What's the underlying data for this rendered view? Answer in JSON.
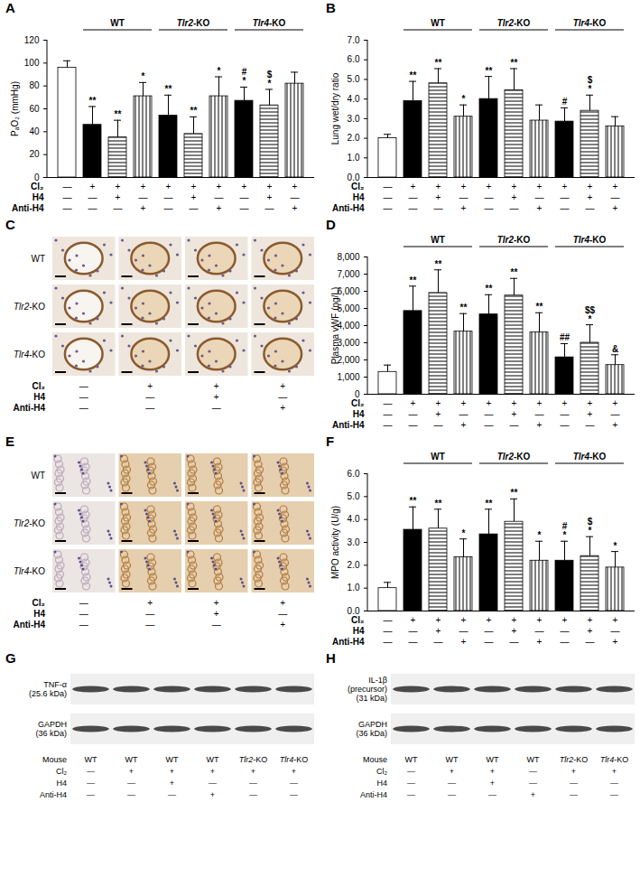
{
  "chart_data": [
    {
      "type": "bar",
      "title": "A",
      "ylabel": "PₐO₂ (mmHg)",
      "categories": [
        null,
        null,
        null,
        null,
        null,
        null,
        null,
        null,
        null,
        null
      ],
      "values": [
        96,
        46,
        35,
        71,
        54,
        38,
        71,
        67,
        63,
        82
      ],
      "errors": [
        6,
        16,
        15,
        12,
        18,
        15,
        17,
        12,
        14,
        10
      ],
      "ylim": [
        0,
        120
      ],
      "yticks": [
        0,
        20,
        40,
        60,
        80,
        100,
        120
      ],
      "tick_labels": "y",
      "colors": [
        "#ffffff",
        "#000000",
        "#ffffff",
        "#ffffff",
        "#000000",
        "#ffffff",
        "#ffffff",
        "#000000",
        "#ffffff",
        "#ffffff"
      ],
      "line_style": [
        "solid",
        "solid",
        "horizontal",
        "vertical",
        "solid",
        "horizontal",
        "vertical",
        "solid",
        "horizontal",
        "vertical"
      ],
      "significance": [
        [],
        [
          "**"
        ],
        [
          "**"
        ],
        [
          "*"
        ],
        [
          "**"
        ],
        [
          "**"
        ],
        [
          "*"
        ],
        [
          "#",
          "*"
        ],
        [
          "$",
          "*"
        ],
        []
      ],
      "groups": [
        {
          "label": "WT",
          "positions": [
            1,
            2,
            3
          ]
        },
        {
          "label": "Tlr2-KO",
          "positions": [
            4,
            5,
            6
          ]
        },
        {
          "label": "Tlr4-KO",
          "positions": [
            7,
            8,
            9
          ]
        }
      ],
      "conditions": [
        {
          "label": "Cl₂",
          "marks": [
            "—",
            "+",
            "+",
            "+",
            "+",
            "+",
            "+",
            "+",
            "+",
            "+"
          ]
        },
        {
          "label": "H4",
          "marks": [
            "—",
            "—",
            "+",
            "—",
            "—",
            "+",
            "—",
            "—",
            "+",
            "—"
          ]
        },
        {
          "label": "Anti-H4",
          "marks": [
            "—",
            "—",
            "—",
            "+",
            "—",
            "—",
            "+",
            "—",
            "—",
            "+"
          ]
        }
      ]
    },
    {
      "type": "bar",
      "title": "B",
      "ylabel": "Lung wet/dry ratio",
      "categories": [
        null,
        null,
        null,
        null,
        null,
        null,
        null,
        null,
        null,
        null
      ],
      "values": [
        2.0,
        3.9,
        4.8,
        3.1,
        4.0,
        4.45,
        2.9,
        2.85,
        3.4,
        2.6
      ],
      "errors": [
        0.2,
        1.0,
        0.75,
        0.6,
        1.15,
        1.1,
        0.8,
        0.7,
        0.8,
        0.5
      ],
      "ylim": [
        0,
        7
      ],
      "yticks": [
        0,
        1,
        2,
        3,
        4,
        5,
        6,
        7
      ],
      "tick_labels": "y",
      "colors": [
        "#ffffff",
        "#000000",
        "#ffffff",
        "#ffffff",
        "#000000",
        "#ffffff",
        "#ffffff",
        "#000000",
        "#ffffff",
        "#ffffff"
      ],
      "line_style": [
        "solid",
        "solid",
        "horizontal",
        "vertical",
        "solid",
        "horizontal",
        "vertical",
        "solid",
        "horizontal",
        "vertical"
      ],
      "significance": [
        [],
        [
          "**"
        ],
        [
          "**"
        ],
        [
          "*"
        ],
        [
          "**"
        ],
        [
          "**"
        ],
        [],
        [
          "#"
        ],
        [
          "$",
          "*"
        ],
        []
      ],
      "groups": [
        {
          "label": "WT",
          "positions": [
            1,
            2,
            3
          ]
        },
        {
          "label": "Tlr2-KO",
          "positions": [
            4,
            5,
            6
          ]
        },
        {
          "label": "Tlr4-KO",
          "positions": [
            7,
            8,
            9
          ]
        }
      ],
      "conditions": [
        {
          "label": "Cl₂",
          "marks": [
            "—",
            "+",
            "+",
            "+",
            "+",
            "+",
            "+",
            "+",
            "+",
            "+"
          ]
        },
        {
          "label": "H4",
          "marks": [
            "—",
            "—",
            "+",
            "—",
            "—",
            "+",
            "—",
            "—",
            "+",
            "—"
          ]
        },
        {
          "label": "Anti-H4",
          "marks": [
            "—",
            "—",
            "—",
            "+",
            "—",
            "—",
            "+",
            "—",
            "—",
            "+"
          ]
        }
      ]
    },
    {
      "type": "bar",
      "title": "D",
      "ylabel": "Plasma vWF (ng/L)",
      "categories": [
        null,
        null,
        null,
        null,
        null,
        null,
        null,
        null,
        null,
        null
      ],
      "values": [
        1300,
        4850,
        5900,
        3650,
        4650,
        5750,
        3600,
        2150,
        3000,
        1700
      ],
      "errors": [
        400,
        1450,
        1350,
        1050,
        1150,
        1000,
        1150,
        800,
        1050,
        600
      ],
      "ylim": [
        0,
        8000
      ],
      "yticks": [
        0,
        1000,
        2000,
        3000,
        4000,
        5000,
        6000,
        7000,
        8000
      ],
      "tick_labels": "y",
      "colors": [
        "#ffffff",
        "#000000",
        "#ffffff",
        "#ffffff",
        "#000000",
        "#ffffff",
        "#ffffff",
        "#000000",
        "#ffffff",
        "#ffffff"
      ],
      "line_style": [
        "solid",
        "solid",
        "horizontal",
        "vertical",
        "solid",
        "horizontal",
        "vertical",
        "solid",
        "horizontal",
        "vertical"
      ],
      "significance": [
        [],
        [
          "**"
        ],
        [
          "**"
        ],
        [
          "**"
        ],
        [
          "**"
        ],
        [
          "**"
        ],
        [
          "**"
        ],
        [
          "##"
        ],
        [
          "$$",
          "*"
        ],
        [
          "&"
        ]
      ],
      "groups": [
        {
          "label": "WT",
          "positions": [
            1,
            2,
            3
          ]
        },
        {
          "label": "Tlr2-KO",
          "positions": [
            4,
            5,
            6
          ]
        },
        {
          "label": "Tlr4-KO",
          "positions": [
            7,
            8,
            9
          ]
        }
      ],
      "conditions": [
        {
          "label": "Cl₂",
          "marks": [
            "—",
            "+",
            "+",
            "+",
            "+",
            "+",
            "+",
            "+",
            "+",
            "+"
          ]
        },
        {
          "label": "H4",
          "marks": [
            "—",
            "—",
            "+",
            "—",
            "—",
            "+",
            "—",
            "—",
            "+",
            "—"
          ]
        },
        {
          "label": "Anti-H4",
          "marks": [
            "—",
            "—",
            "—",
            "+",
            "—",
            "—",
            "+",
            "—",
            "—",
            "+"
          ]
        }
      ]
    },
    {
      "type": "bar",
      "title": "F",
      "ylabel": "MPO activity (U/g)",
      "categories": [
        null,
        null,
        null,
        null,
        null,
        null,
        null,
        null,
        null,
        null
      ],
      "values": [
        1.0,
        3.55,
        3.6,
        2.35,
        3.35,
        3.9,
        2.2,
        2.2,
        2.4,
        1.9
      ],
      "errors": [
        0.25,
        1.0,
        0.85,
        0.8,
        1.1,
        1.0,
        0.85,
        0.85,
        0.85,
        0.7
      ],
      "ylim": [
        0,
        6
      ],
      "yticks": [
        0,
        1,
        2,
        3,
        4,
        5,
        6
      ],
      "tick_labels": "y",
      "colors": [
        "#ffffff",
        "#000000",
        "#ffffff",
        "#ffffff",
        "#000000",
        "#ffffff",
        "#ffffff",
        "#000000",
        "#ffffff",
        "#ffffff"
      ],
      "line_style": [
        "solid",
        "solid",
        "horizontal",
        "vertical",
        "solid",
        "horizontal",
        "vertical",
        "solid",
        "horizontal",
        "vertical"
      ],
      "significance": [
        [],
        [
          "**"
        ],
        [
          "**"
        ],
        [
          "*"
        ],
        [
          "**"
        ],
        [
          "**"
        ],
        [
          "*"
        ],
        [
          "#",
          "*"
        ],
        [
          "$",
          "*"
        ],
        [
          "*"
        ]
      ],
      "groups": [
        {
          "label": "WT",
          "positions": [
            1,
            2,
            3
          ]
        },
        {
          "label": "Tlr2-KO",
          "positions": [
            4,
            5,
            6
          ]
        },
        {
          "label": "Tlr4-KO",
          "positions": [
            7,
            8,
            9
          ]
        }
      ],
      "conditions": [
        {
          "label": "Cl₂",
          "marks": [
            "—",
            "+",
            "+",
            "+",
            "+",
            "+",
            "+",
            "+",
            "+",
            "+"
          ]
        },
        {
          "label": "H4",
          "marks": [
            "—",
            "—",
            "+",
            "—",
            "—",
            "+",
            "—",
            "—",
            "+",
            "—"
          ]
        },
        {
          "label": "Anti-H4",
          "marks": [
            "—",
            "—",
            "—",
            "+",
            "—",
            "—",
            "+",
            "—",
            "—",
            "+"
          ]
        }
      ]
    }
  ],
  "figure_panels": [
    {
      "type": "micrograph",
      "title": "C",
      "rows": [
        "WT",
        "Tlr2-KO",
        "Tlr4-KO"
      ],
      "conditions": [
        {
          "label": "Cl₂",
          "marks": [
            "—",
            "+",
            "+",
            "+"
          ]
        },
        {
          "label": "H4",
          "marks": [
            "—",
            "—",
            "+",
            "—"
          ]
        },
        {
          "label": "Anti-H4",
          "marks": [
            "—",
            "—",
            "—",
            "+"
          ]
        }
      ]
    },
    {
      "type": "micrograph",
      "title": "E",
      "rows": [
        "WT",
        "Tlr2-KO",
        "Tlr4-KO"
      ],
      "conditions": [
        {
          "label": "Cl₂",
          "marks": [
            "—",
            "+",
            "+",
            "+"
          ]
        },
        {
          "label": "H4",
          "marks": [
            "—",
            "—",
            "+",
            "—"
          ]
        },
        {
          "label": "Anti-H4",
          "marks": [
            "—",
            "—",
            "—",
            "+"
          ]
        }
      ]
    },
    {
      "type": "western_blot",
      "title": "G",
      "bands": [
        [
          "TNF-α",
          "(25.6 kDa)"
        ],
        [
          "GAPDH",
          "(36 kDa)"
        ]
      ],
      "conditions": [
        {
          "label": "Mouse",
          "marks": [
            "WT",
            "WT",
            "WT",
            "WT",
            "Tlr2-KO",
            "Tlr4-KO"
          ]
        },
        {
          "label": "Cl₂",
          "marks": [
            "—",
            "+",
            "+",
            "+",
            "+",
            "+"
          ]
        },
        {
          "label": "H4",
          "marks": [
            "—",
            "—",
            "+",
            "—",
            "—",
            "—"
          ]
        },
        {
          "label": "Anti-H4",
          "marks": [
            "—",
            "—",
            "—",
            "+",
            "—",
            "—"
          ]
        }
      ]
    },
    {
      "type": "western_blot",
      "title": "H",
      "bands": [
        [
          "IL-1β",
          "(precursor)",
          "(31 kDa)"
        ],
        [
          "GAPDH",
          "(36 kDa)"
        ]
      ],
      "conditions": [
        {
          "label": "Mouse",
          "marks": [
            "WT",
            "WT",
            "WT",
            "WT",
            "Tlr2-KO",
            "Tlr4-KO"
          ]
        },
        {
          "label": "Cl₂",
          "marks": [
            "—",
            "+",
            "+",
            "—",
            "+",
            "+"
          ]
        },
        {
          "label": "H4",
          "marks": [
            "—",
            "—",
            "+",
            "—",
            "—",
            "—"
          ]
        },
        {
          "label": "Anti-H4",
          "marks": [
            "—",
            "—",
            "—",
            "+",
            "—",
            "—"
          ]
        }
      ]
    }
  ]
}
